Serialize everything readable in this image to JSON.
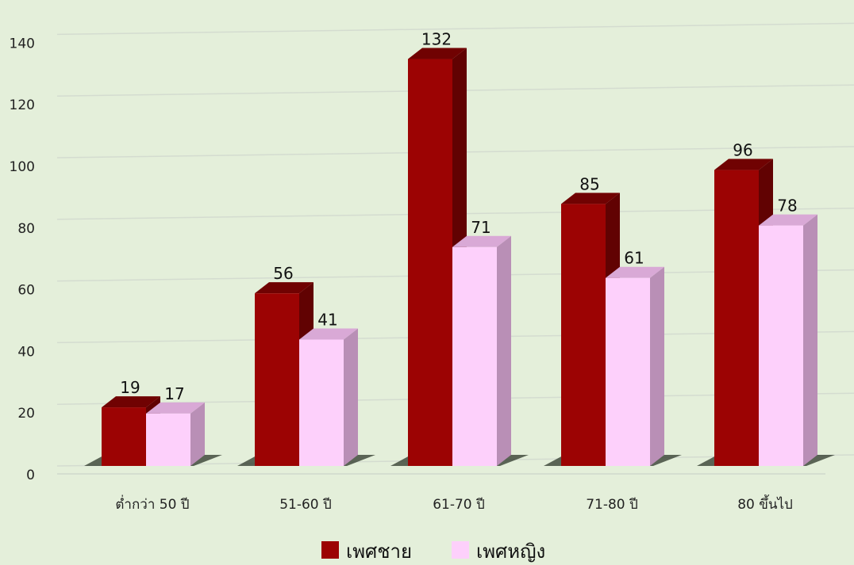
{
  "chart_data": {
    "type": "bar",
    "categories": [
      "ต่ำกว่า 50 ปี",
      "51-60 ปี",
      "61-70 ปี",
      "71-80 ปี",
      "80 ขึ้นไป"
    ],
    "series": [
      {
        "name": "เพศชาย",
        "values": [
          19,
          56,
          132,
          85,
          96
        ],
        "color": "#9c0303"
      },
      {
        "name": "เพศหญิง",
        "values": [
          17,
          41,
          71,
          61,
          78
        ],
        "color": "#fdd0fb"
      }
    ],
    "ylim": [
      0,
      140
    ],
    "yticks": [
      0,
      20,
      40,
      60,
      80,
      100,
      120,
      140
    ],
    "grid": true,
    "legend_position": "bottom",
    "style": "3d-column"
  }
}
